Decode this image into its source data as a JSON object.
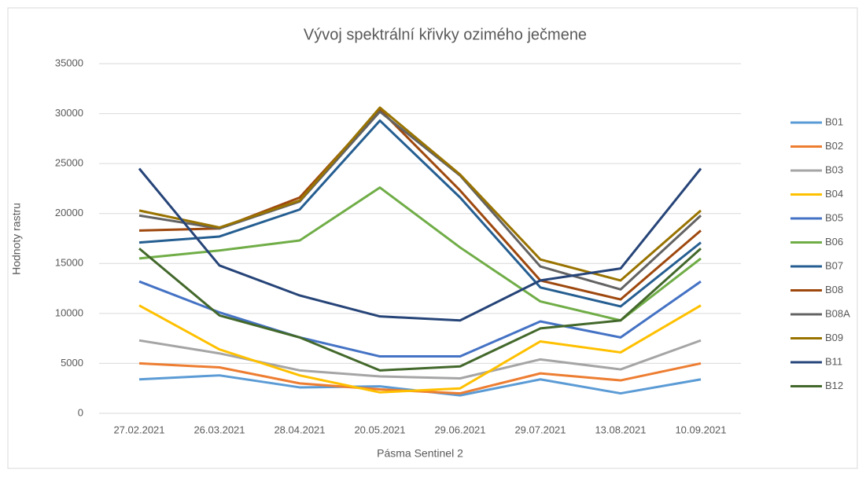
{
  "chart_data": {
    "type": "line",
    "title": "Vývoj spektrální křivky ozimého ječmene",
    "x_label": "Pásma Sentinel 2",
    "y_label": "Hodnoty rastru",
    "categories": [
      "27.02.2021",
      "26.03.2021",
      "28.04.2021",
      "20.05.2021",
      "29.06.2021",
      "29.07.2021",
      "13.08.2021",
      "10.09.2021"
    ],
    "ylim": [
      0,
      35000
    ],
    "yticks": [
      0,
      5000,
      10000,
      15000,
      20000,
      25000,
      30000,
      35000
    ],
    "grid": true,
    "legend": "right",
    "series": [
      {
        "name": "B01",
        "color": "#5b9bd5",
        "values": [
          3400,
          3800,
          2600,
          2700,
          1800,
          3400,
          2000,
          3400
        ]
      },
      {
        "name": "B02",
        "color": "#ed7d31",
        "values": [
          5000,
          4600,
          3000,
          2400,
          2000,
          4000,
          3300,
          5000
        ]
      },
      {
        "name": "B03",
        "color": "#a5a5a5",
        "values": [
          7300,
          6000,
          4300,
          3700,
          3500,
          5400,
          4400,
          7300
        ]
      },
      {
        "name": "B04",
        "color": "#ffc000",
        "values": [
          10800,
          6400,
          3800,
          2100,
          2500,
          7200,
          6100,
          10800
        ]
      },
      {
        "name": "B05",
        "color": "#4472c4",
        "values": [
          13200,
          10100,
          7600,
          5700,
          5700,
          9200,
          7600,
          13200
        ]
      },
      {
        "name": "B06",
        "color": "#70ad47",
        "values": [
          15500,
          16300,
          17300,
          22600,
          16600,
          11200,
          9300,
          15500
        ]
      },
      {
        "name": "B07",
        "color": "#255e91",
        "values": [
          17100,
          17700,
          20400,
          29300,
          21600,
          12600,
          10700,
          17100
        ]
      },
      {
        "name": "B08",
        "color": "#9e480e",
        "values": [
          18300,
          18500,
          21600,
          30400,
          22300,
          13300,
          11400,
          18300
        ]
      },
      {
        "name": "B08A",
        "color": "#636363",
        "values": [
          19800,
          18500,
          21200,
          30200,
          23800,
          14700,
          12400,
          19800
        ]
      },
      {
        "name": "B09",
        "color": "#997300",
        "values": [
          20300,
          18600,
          21300,
          30600,
          23900,
          15400,
          13300,
          20300
        ]
      },
      {
        "name": "B11",
        "color": "#264478",
        "values": [
          24500,
          14800,
          11800,
          9700,
          9300,
          13300,
          14500,
          24500
        ]
      },
      {
        "name": "B12",
        "color": "#43682b",
        "values": [
          16500,
          9800,
          7600,
          4300,
          4700,
          8500,
          9300,
          16500
        ]
      }
    ]
  }
}
